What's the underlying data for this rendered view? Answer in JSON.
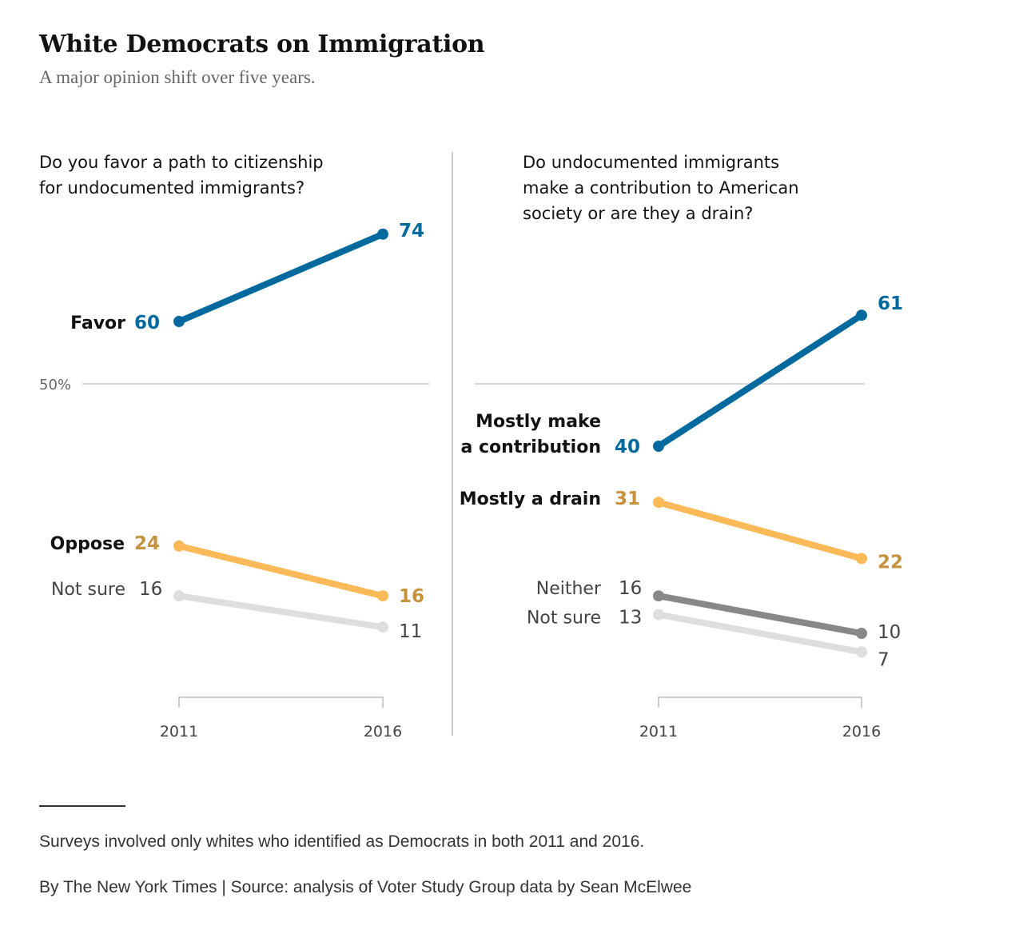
{
  "header": {
    "title": "White Democrats on Immigration",
    "subtitle": "A major opinion shift over five years."
  },
  "footer": {
    "note": "Surveys involved only whites who identified as Democrats in both 2011 and 2016.",
    "credit": "By The New York Times | Source: analysis of Voter Study Group data by Sean McElwee"
  },
  "colors": {
    "blue": "#00699d",
    "orange": "#fbb957",
    "orange_text": "#c7923e",
    "dark_gray": "#888888",
    "light_gray": "#dedede",
    "gray_text": "#444444",
    "axis": "#bbbbbb"
  },
  "chart_data": [
    {
      "type": "line",
      "question": [
        "Do you favor a path to citizenship",
        "for undocumented immigrants?"
      ],
      "x": [
        "2011",
        "2016"
      ],
      "reference_line": {
        "value": 50,
        "label": "50%"
      },
      "series": [
        {
          "name": "Favor",
          "values": [
            60,
            74
          ],
          "color": "blue"
        },
        {
          "name": "Oppose",
          "values": [
            24,
            16
          ],
          "color": "orange"
        },
        {
          "name": "Not sure",
          "values": [
            16,
            11
          ],
          "color": "light_gray"
        }
      ]
    },
    {
      "type": "line",
      "question": [
        "Do undocumented immigrants",
        "make a contribution to American",
        "society or are they a drain?"
      ],
      "x": [
        "2011",
        "2016"
      ],
      "reference_line": {
        "value": 50,
        "label": ""
      },
      "series": [
        {
          "name": "Mostly make a contribution",
          "label_lines": [
            "Mostly make",
            "a contribution"
          ],
          "values": [
            40,
            61
          ],
          "color": "blue"
        },
        {
          "name": "Mostly a drain",
          "values": [
            31,
            22
          ],
          "color": "orange"
        },
        {
          "name": "Neither",
          "values": [
            16,
            10
          ],
          "color": "dark_gray"
        },
        {
          "name": "Not sure",
          "values": [
            13,
            7
          ],
          "color": "light_gray"
        }
      ]
    }
  ]
}
